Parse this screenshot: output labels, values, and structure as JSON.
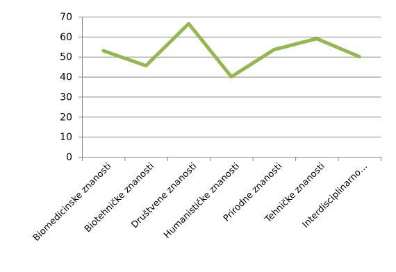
{
  "chart_data": {
    "type": "line",
    "title": "",
    "xlabel": "",
    "ylabel": "",
    "categories": [
      "Biomedicinske znanosti",
      "Biotehničke znanosti",
      "Društvene znanosti",
      "Humanističke znanosti",
      "Prirodne znanosti",
      "Tehničke znanosti",
      "Interdisciplinarno…"
    ],
    "series": [
      {
        "values": [
          53,
          45.5,
          66.5,
          40,
          53.5,
          59,
          50
        ],
        "color": "#93b751"
      }
    ],
    "ylim": [
      0,
      70
    ],
    "yticks": [
      0,
      10,
      20,
      30,
      40,
      50,
      60,
      70
    ],
    "grid": true,
    "legend": "none"
  }
}
